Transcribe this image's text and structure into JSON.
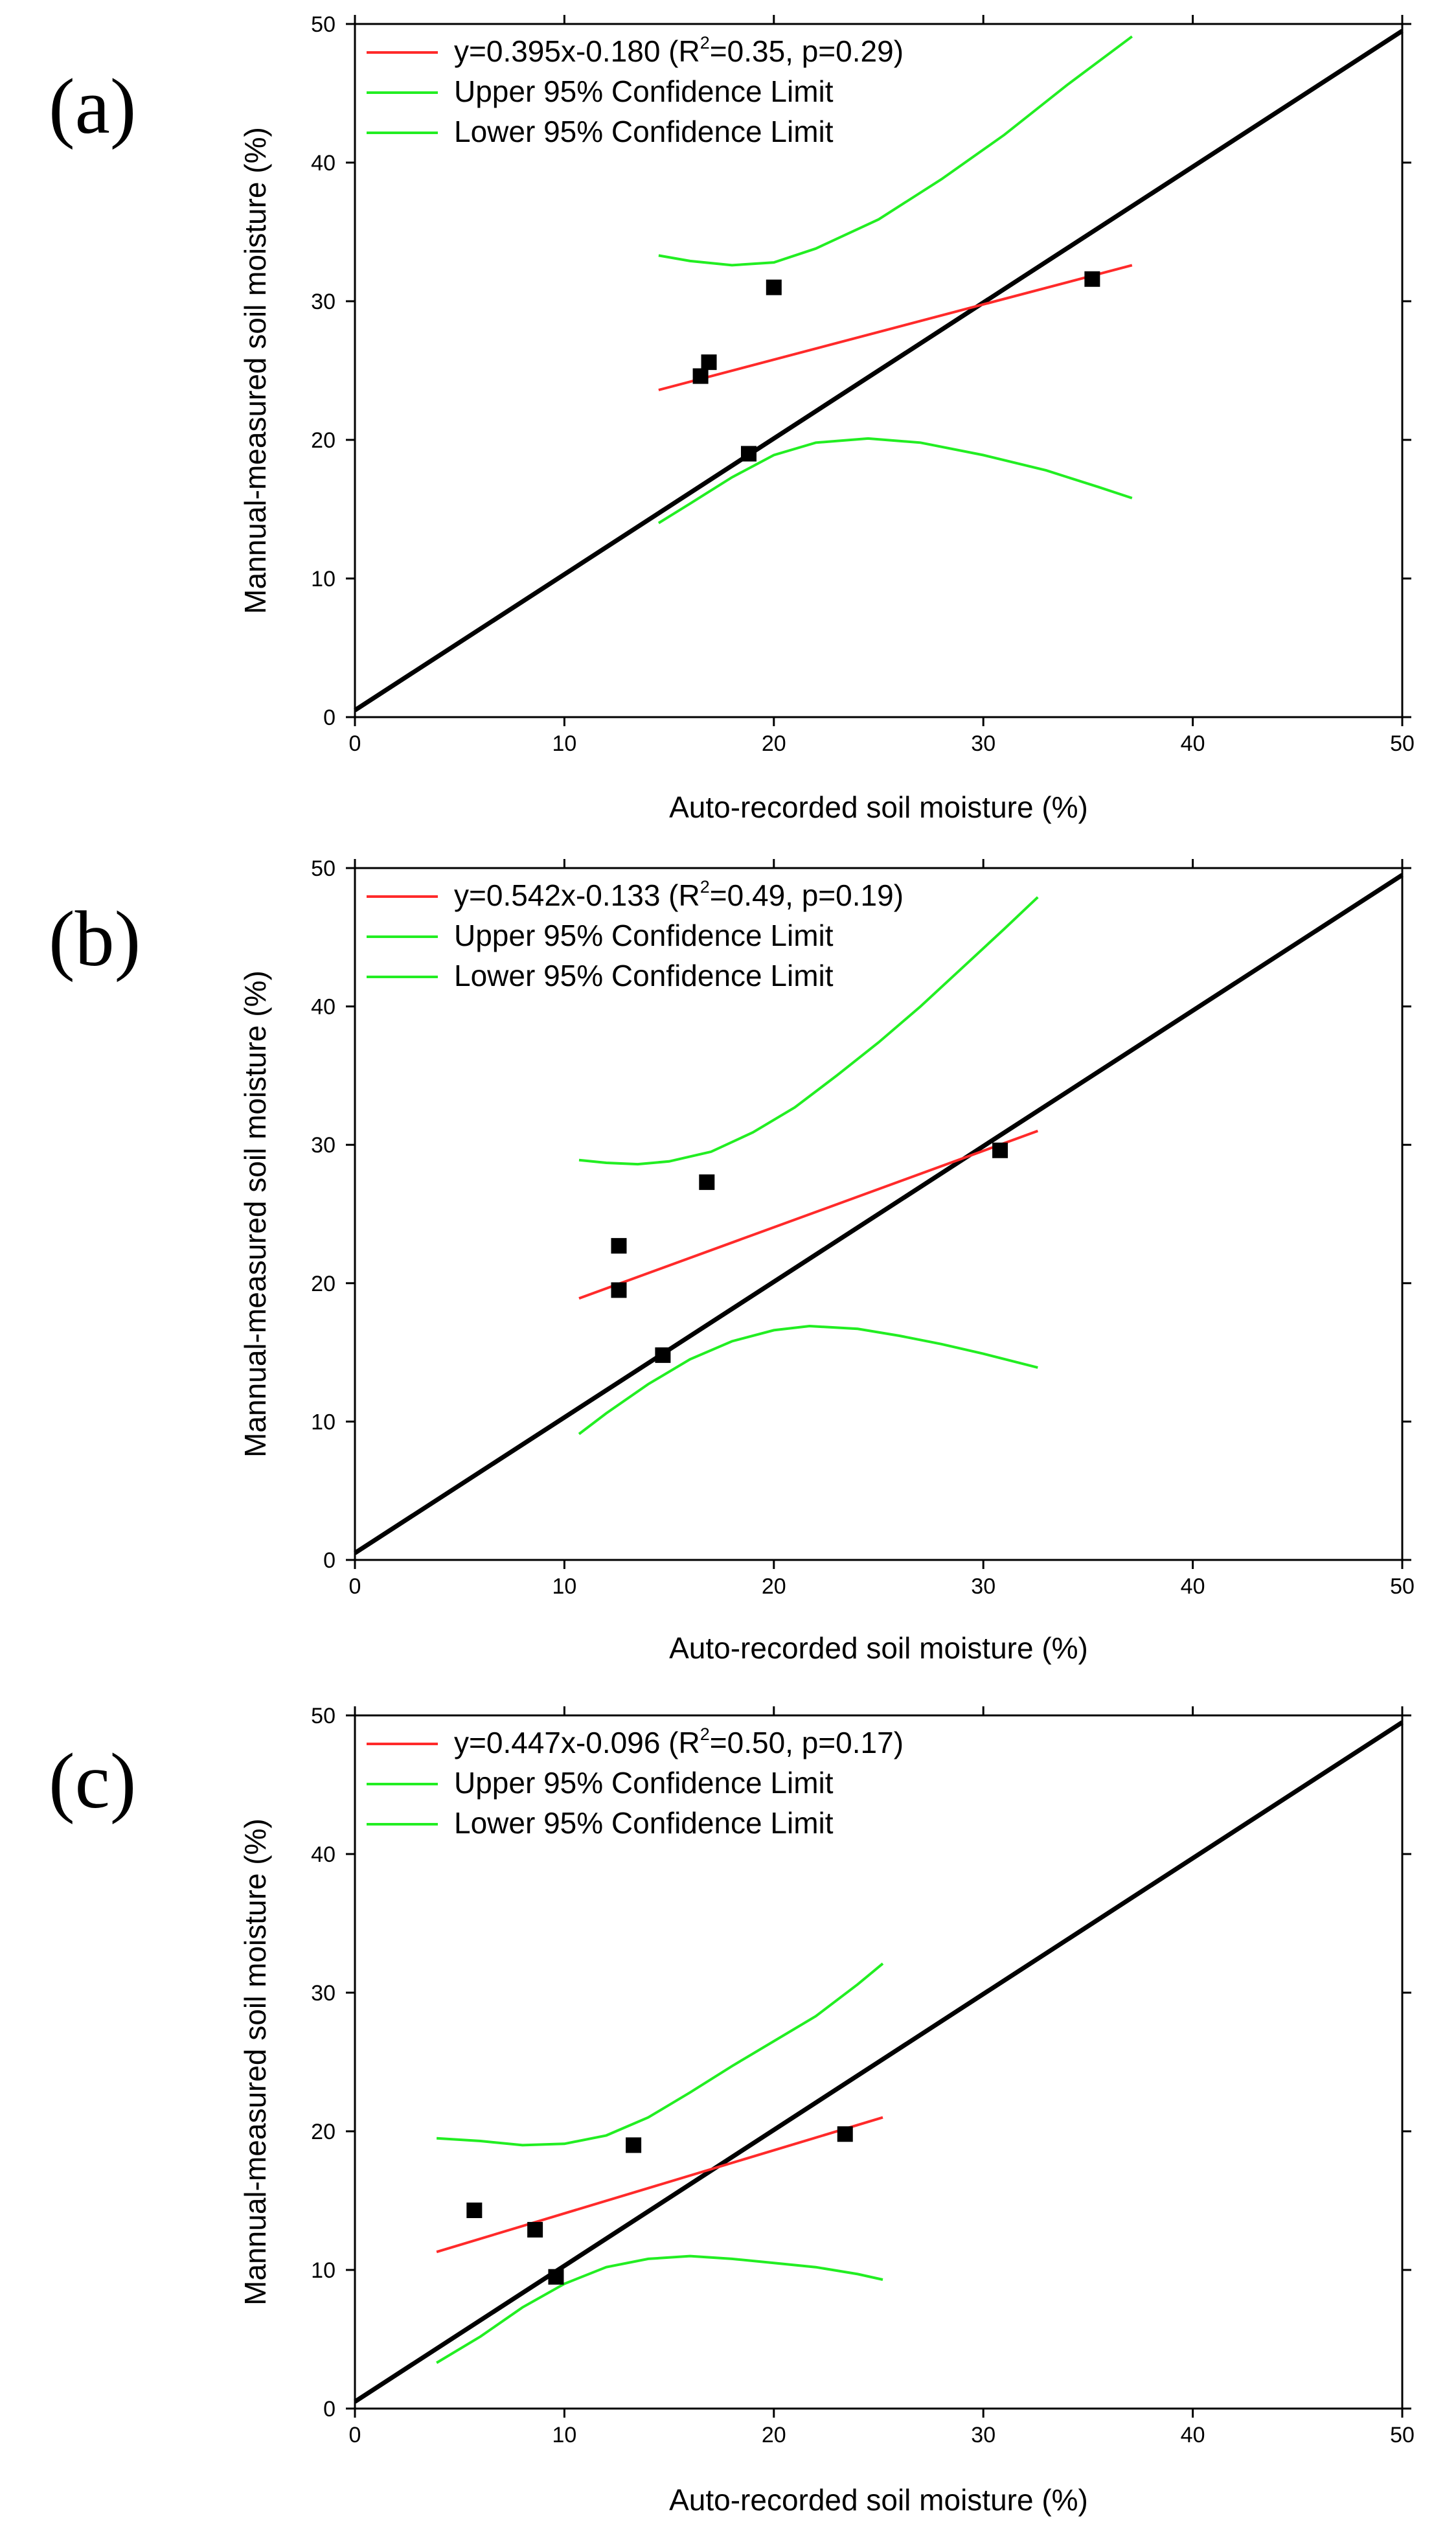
{
  "colors": {
    "fit": "#ff2a2a",
    "confidence": "#22ee22",
    "identity": "#000000",
    "points": "#000000"
  },
  "chart_data": [
    {
      "type": "scatter",
      "panel_label": "(a)",
      "xlabel": "Auto-recorded soil moisture (%)",
      "ylabel": "Mannual-measured soil moisture (%)",
      "xlim": [
        0,
        50
      ],
      "ylim": [
        0,
        50
      ],
      "xticks": [
        "0",
        "10",
        "20",
        "30",
        "40",
        "50"
      ],
      "yticks": [
        "0",
        "10",
        "20",
        "30",
        "40",
        "50"
      ],
      "legend": {
        "fit_prefix": "y=0.395x-0.180 (R",
        "fit_sup": "2",
        "fit_suffix": "=0.35, p=0.29)",
        "upper": "Upper 95% Confidence Limit",
        "lower": "Lower 95% Confidence Limit"
      },
      "points": [
        {
          "x": 16.5,
          "y": 24.6
        },
        {
          "x": 16.9,
          "y": 25.6
        },
        {
          "x": 18.8,
          "y": 19.0
        },
        {
          "x": 20.0,
          "y": 31.0
        },
        {
          "x": 35.2,
          "y": 31.6
        }
      ],
      "identity_line": [
        [
          0,
          0.5
        ],
        [
          50,
          49.5
        ]
      ],
      "fit_line": [
        [
          14.5,
          23.6
        ],
        [
          37.1,
          32.6
        ]
      ],
      "upper_ci": [
        [
          14.5,
          33.3
        ],
        [
          16,
          32.9
        ],
        [
          18,
          32.6
        ],
        [
          20,
          32.8
        ],
        [
          22,
          33.8
        ],
        [
          25,
          35.9
        ],
        [
          28,
          38.8
        ],
        [
          31,
          42.0
        ],
        [
          34,
          45.6
        ],
        [
          37.1,
          49.1
        ]
      ],
      "lower_ci": [
        [
          14.5,
          14.0
        ],
        [
          16,
          15.4
        ],
        [
          18,
          17.3
        ],
        [
          20,
          18.9
        ],
        [
          22,
          19.8
        ],
        [
          24.5,
          20.1
        ],
        [
          27,
          19.8
        ],
        [
          30,
          18.9
        ],
        [
          33,
          17.8
        ],
        [
          35.5,
          16.6
        ],
        [
          37.1,
          15.8
        ]
      ]
    },
    {
      "type": "scatter",
      "panel_label": "(b)",
      "xlabel": "Auto-recorded soil moisture (%)",
      "ylabel": "Mannual-measured soil moisture (%)",
      "xlim": [
        0,
        50
      ],
      "ylim": [
        0,
        50
      ],
      "xticks": [
        "0",
        "10",
        "20",
        "30",
        "40",
        "50"
      ],
      "yticks": [
        "0",
        "10",
        "20",
        "30",
        "40",
        "50"
      ],
      "legend": {
        "fit_prefix": "y=0.542x-0.133 (R",
        "fit_sup": "2",
        "fit_suffix": "=0.49, p=0.19)",
        "upper": "Upper 95% Confidence Limit",
        "lower": "Lower 95% Confidence Limit"
      },
      "points": [
        {
          "x": 12.6,
          "y": 22.7
        },
        {
          "x": 12.6,
          "y": 19.5
        },
        {
          "x": 14.7,
          "y": 14.8
        },
        {
          "x": 16.8,
          "y": 27.3
        },
        {
          "x": 30.8,
          "y": 29.6
        }
      ],
      "identity_line": [
        [
          0,
          0.5
        ],
        [
          50,
          49.5
        ]
      ],
      "fit_line": [
        [
          10.7,
          18.9
        ],
        [
          32.6,
          31.0
        ]
      ],
      "upper_ci": [
        [
          10.7,
          28.9
        ],
        [
          12,
          28.7
        ],
        [
          13.5,
          28.6
        ],
        [
          15,
          28.8
        ],
        [
          17,
          29.5
        ],
        [
          19,
          30.9
        ],
        [
          21,
          32.7
        ],
        [
          23,
          35.0
        ],
        [
          25,
          37.4
        ],
        [
          27,
          40.0
        ],
        [
          29,
          42.8
        ],
        [
          31,
          45.6
        ],
        [
          32.6,
          47.9
        ]
      ],
      "lower_ci": [
        [
          10.7,
          9.1
        ],
        [
          12,
          10.6
        ],
        [
          14,
          12.7
        ],
        [
          16,
          14.5
        ],
        [
          18,
          15.8
        ],
        [
          20,
          16.6
        ],
        [
          21.7,
          16.9
        ],
        [
          24,
          16.7
        ],
        [
          26,
          16.2
        ],
        [
          28,
          15.6
        ],
        [
          30,
          14.9
        ],
        [
          32.6,
          13.9
        ]
      ]
    },
    {
      "type": "scatter",
      "panel_label": "(c)",
      "xlabel": "Auto-recorded soil moisture (%)",
      "ylabel": "Mannual-measured soil moisture (%)",
      "xlim": [
        0,
        50
      ],
      "ylim": [
        0,
        50
      ],
      "xticks": [
        "0",
        "10",
        "20",
        "30",
        "40",
        "50"
      ],
      "yticks": [
        "0",
        "10",
        "20",
        "30",
        "40",
        "50"
      ],
      "legend": {
        "fit_prefix": "y=0.447x-0.096 (R",
        "fit_sup": "2",
        "fit_suffix": "=0.50, p=0.17)",
        "upper": "Upper 95% Confidence Limit",
        "lower": "Lower 95% Confidence Limit"
      },
      "points": [
        {
          "x": 5.7,
          "y": 14.3
        },
        {
          "x": 8.6,
          "y": 12.9
        },
        {
          "x": 9.6,
          "y": 9.5
        },
        {
          "x": 13.3,
          "y": 19.0
        },
        {
          "x": 23.4,
          "y": 19.8
        }
      ],
      "identity_line": [
        [
          0,
          0.5
        ],
        [
          50,
          49.5
        ]
      ],
      "fit_line": [
        [
          3.9,
          11.3
        ],
        [
          25.2,
          21.0
        ]
      ],
      "upper_ci": [
        [
          3.9,
          19.5
        ],
        [
          6,
          19.3
        ],
        [
          8,
          19.0
        ],
        [
          10,
          19.1
        ],
        [
          12,
          19.7
        ],
        [
          14,
          21.0
        ],
        [
          16,
          22.8
        ],
        [
          18,
          24.7
        ],
        [
          20,
          26.5
        ],
        [
          22,
          28.3
        ],
        [
          24,
          30.6
        ],
        [
          25.2,
          32.1
        ]
      ],
      "lower_ci": [
        [
          3.9,
          3.3
        ],
        [
          6,
          5.2
        ],
        [
          8,
          7.3
        ],
        [
          10,
          9.0
        ],
        [
          12,
          10.2
        ],
        [
          14,
          10.8
        ],
        [
          16,
          11.0
        ],
        [
          18,
          10.8
        ],
        [
          20,
          10.5
        ],
        [
          22,
          10.2
        ],
        [
          24,
          9.7
        ],
        [
          25.2,
          9.3
        ]
      ]
    }
  ]
}
